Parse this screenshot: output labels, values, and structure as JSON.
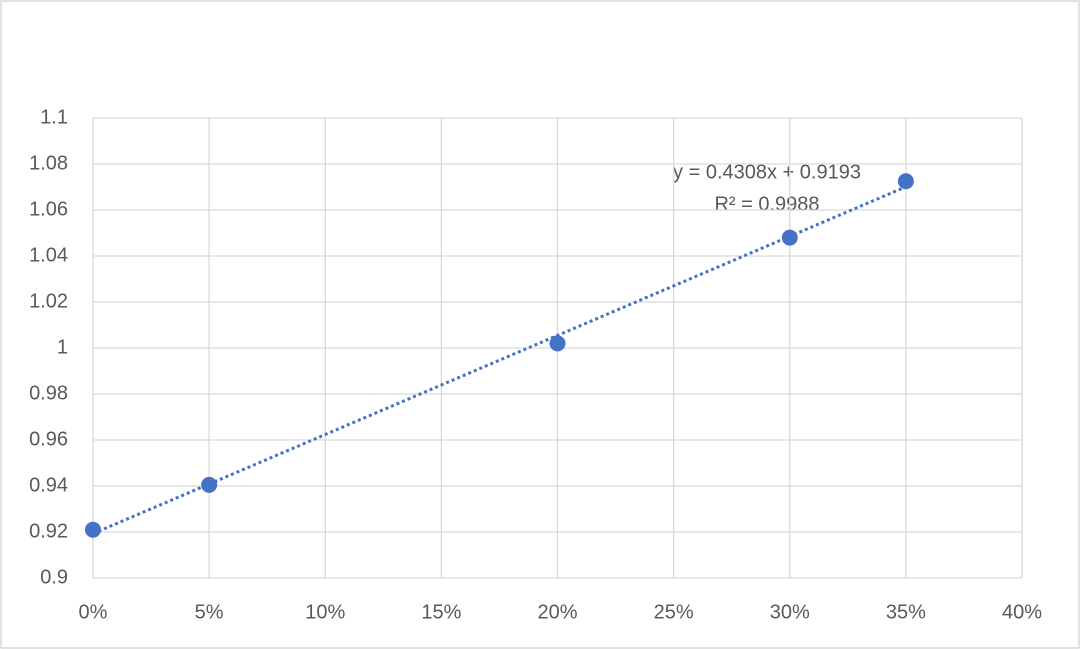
{
  "chart_data": {
    "type": "scatter",
    "x": [
      0,
      0.05,
      0.2,
      0.3,
      0.35
    ],
    "values": [
      0.921,
      0.9405,
      1.002,
      1.048,
      1.0725
    ],
    "color": "#4472c4",
    "xlim": [
      0,
      0.4
    ],
    "xticks": [
      {
        "value": 0,
        "label": "0%"
      },
      {
        "value": 0.05,
        "label": "5%"
      },
      {
        "value": 0.1,
        "label": "10%"
      },
      {
        "value": 0.15,
        "label": "15%"
      },
      {
        "value": 0.2,
        "label": "20%"
      },
      {
        "value": 0.25,
        "label": "25%"
      },
      {
        "value": 0.3,
        "label": "30%"
      },
      {
        "value": 0.35,
        "label": "35%"
      },
      {
        "value": 0.4,
        "label": "40%"
      }
    ],
    "ylim": [
      0.9,
      1.1
    ],
    "yticks": [
      0.9,
      0.92,
      0.94,
      0.96,
      0.98,
      1,
      1.02,
      1.04,
      1.06,
      1.08,
      1.1
    ],
    "grid": true,
    "trendline": {
      "slope": 0.4308,
      "intercept": 0.9193,
      "equation": "y = 0.4308x + 0.9193",
      "r_squared": "R² = 0.9988"
    }
  }
}
